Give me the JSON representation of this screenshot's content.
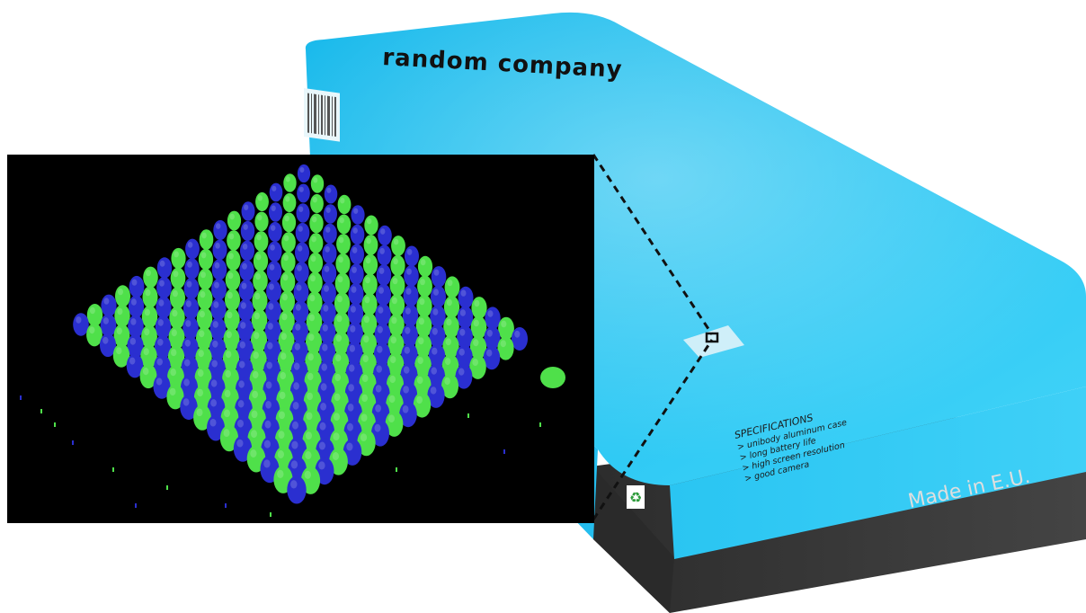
{
  "box": {
    "brand_text": "random company",
    "made_in_text": "Made in E.U.",
    "specs_title": "SPECIFICATIONS",
    "specs_lines": [
      "> unibody aluminum case",
      "> long battery life",
      "> high screen resolution",
      "> good camera"
    ]
  },
  "colors": {
    "box_top": "#1fc3f0",
    "box_front": "#33ccf5",
    "base": "#3b3b3b",
    "inset_bg": "#000000",
    "blob_green": "#4fe04a",
    "blob_blue": "#2a2fd0"
  },
  "icons": {
    "barcode": "barcode-icon",
    "recycle": "recycle-icon",
    "chip": "chip-icon"
  }
}
